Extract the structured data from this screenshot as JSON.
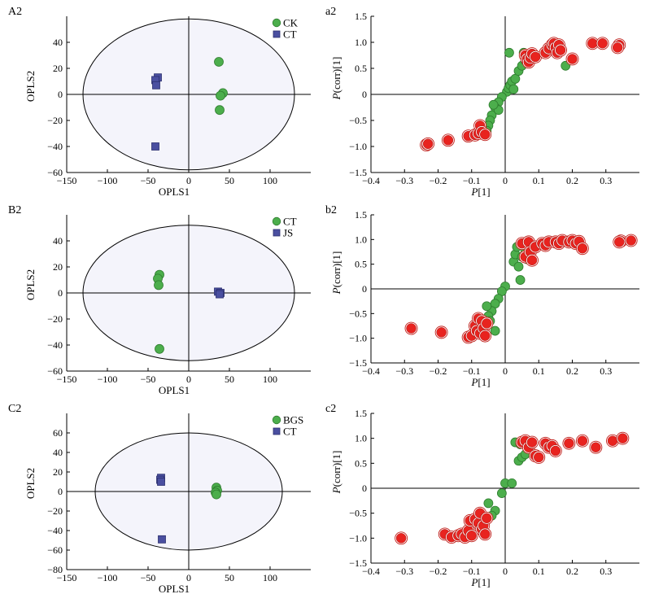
{
  "colors": {
    "green": "#4cae4c",
    "green_edge": "#2f7d2f",
    "red": "#e8231f",
    "red_ring": "#c0201c",
    "blue": "#4a4fa0",
    "blue_edge": "#2b2f6e",
    "ellipse_fill": "#f4f4fb",
    "axis": "#000000"
  },
  "chart_data": [
    {
      "type": "scatter",
      "panel_label": "A2",
      "xlabel": "OPLS1",
      "ylabel": "OPLS2",
      "xlim": [
        -150,
        150
      ],
      "ylim": [
        -60,
        60
      ],
      "xticks": [
        -150,
        -100,
        -50,
        0,
        50,
        100
      ],
      "yticks": [
        -60,
        -40,
        -20,
        0,
        20,
        40
      ],
      "ellipse": {
        "rx": 130,
        "ry": 58
      },
      "legend_placement": "top-right",
      "series": [
        {
          "name": "CK",
          "marker": "circle",
          "color": "green",
          "points": [
            [
              37,
              25
            ],
            [
              42,
              1
            ],
            [
              39,
              -1
            ],
            [
              38,
              -12
            ]
          ]
        },
        {
          "name": "CT",
          "marker": "square",
          "color": "blue",
          "points": [
            [
              -38,
              13
            ],
            [
              -41,
              11
            ],
            [
              -40,
              7
            ],
            [
              -41,
              -40
            ]
          ]
        }
      ]
    },
    {
      "type": "scatter",
      "panel_label": "a2",
      "xlabel": "P[1]",
      "ylabel": "P(corr)[1]",
      "xlim": [
        -0.4,
        0.4
      ],
      "ylim": [
        -1.5,
        1.5
      ],
      "xticks": [
        -0.4,
        -0.3,
        -0.2,
        -0.1,
        0,
        0.1,
        0.2,
        0.3
      ],
      "yticks": [
        -1.5,
        -1.0,
        -0.5,
        0,
        0.5,
        1.0,
        1.5
      ],
      "series": [
        {
          "marker": "circle",
          "color": "green",
          "points": [
            [
              0.005,
              0.05
            ],
            [
              0.01,
              0.12
            ],
            [
              0.015,
              0.18
            ],
            [
              0.02,
              0.25
            ],
            [
              0.025,
              0.1
            ],
            [
              -0.01,
              -0.05
            ],
            [
              -0.02,
              -0.15
            ],
            [
              -0.03,
              -0.25
            ],
            [
              -0.04,
              -0.4
            ],
            [
              -0.045,
              -0.5
            ],
            [
              -0.05,
              -0.6
            ],
            [
              -0.055,
              -0.7
            ],
            [
              -0.02,
              -0.3
            ],
            [
              0.03,
              0.3
            ],
            [
              0.04,
              0.45
            ],
            [
              0.05,
              0.55
            ],
            [
              0.06,
              0.65
            ],
            [
              0.055,
              0.8
            ],
            [
              0.065,
              0.7
            ],
            [
              0.07,
              0.6
            ],
            [
              0.012,
              0.8
            ],
            [
              0.09,
              0.75
            ],
            [
              0.18,
              0.55
            ],
            [
              -0.035,
              -0.2
            ]
          ]
        },
        {
          "marker": "ring",
          "color": "red",
          "points": [
            [
              -0.235,
              -0.97
            ],
            [
              -0.23,
              -0.95
            ],
            [
              -0.17,
              -0.88
            ],
            [
              -0.11,
              -0.8
            ],
            [
              -0.09,
              -0.78
            ],
            [
              -0.08,
              -0.75
            ],
            [
              -0.075,
              -0.6
            ],
            [
              -0.07,
              -0.72
            ],
            [
              -0.06,
              -0.77
            ],
            [
              0.06,
              0.75
            ],
            [
              0.065,
              0.68
            ],
            [
              0.07,
              0.62
            ],
            [
              0.075,
              0.7
            ],
            [
              0.08,
              0.78
            ],
            [
              0.09,
              0.72
            ],
            [
              0.12,
              0.8
            ],
            [
              0.13,
              0.88
            ],
            [
              0.14,
              0.95
            ],
            [
              0.145,
              0.98
            ],
            [
              0.15,
              0.9
            ],
            [
              0.155,
              0.8
            ],
            [
              0.16,
              0.95
            ],
            [
              0.165,
              0.85
            ],
            [
              0.2,
              0.68
            ],
            [
              0.26,
              0.98
            ],
            [
              0.29,
              0.98
            ],
            [
              0.34,
              0.95
            ],
            [
              0.335,
              0.9
            ]
          ]
        }
      ]
    },
    {
      "type": "scatter",
      "panel_label": "B2",
      "xlabel": "OPLS1",
      "ylabel": "OPLS2",
      "xlim": [
        -150,
        150
      ],
      "ylim": [
        -60,
        60
      ],
      "xticks": [
        -150,
        -100,
        -50,
        0,
        50,
        100
      ],
      "yticks": [
        -60,
        -40,
        -20,
        0,
        20,
        40
      ],
      "ellipse": {
        "rx": 130,
        "ry": 52
      },
      "legend_placement": "top-right",
      "series": [
        {
          "name": "CT",
          "marker": "circle",
          "color": "green",
          "points": [
            [
              -36,
              14
            ],
            [
              -38,
              11
            ],
            [
              -37,
              6
            ],
            [
              -36,
              -43
            ]
          ]
        },
        {
          "name": "JS",
          "marker": "square",
          "color": "blue",
          "points": [
            [
              36,
              1
            ],
            [
              39,
              0
            ],
            [
              38,
              -1
            ]
          ]
        }
      ]
    },
    {
      "type": "scatter",
      "panel_label": "b2",
      "xlabel": "P[1]",
      "ylabel": "P(corr)[1]",
      "xlim": [
        -0.4,
        0.4
      ],
      "ylim": [
        -1.5,
        1.5
      ],
      "xticks": [
        -0.4,
        -0.3,
        -0.2,
        -0.1,
        0,
        0.1,
        0.2,
        0.3
      ],
      "yticks": [
        -1.5,
        -1.0,
        -0.5,
        0,
        0.5,
        1.0,
        1.5
      ],
      "series": [
        {
          "marker": "circle",
          "color": "green",
          "points": [
            [
              0.0,
              0.05
            ],
            [
              -0.01,
              -0.05
            ],
            [
              -0.02,
              -0.2
            ],
            [
              -0.03,
              -0.3
            ],
            [
              -0.04,
              -0.45
            ],
            [
              -0.05,
              -0.55
            ],
            [
              -0.055,
              -0.35
            ],
            [
              -0.06,
              -0.7
            ],
            [
              -0.03,
              -0.85
            ],
            [
              0.025,
              0.55
            ],
            [
              0.03,
              0.7
            ],
            [
              0.035,
              0.85
            ],
            [
              0.04,
              0.45
            ],
            [
              0.045,
              0.18
            ],
            [
              0.05,
              0.65
            ],
            [
              0.055,
              0.9
            ],
            [
              0.06,
              0.75
            ],
            [
              0.065,
              0.6
            ],
            [
              -0.045,
              -0.65
            ]
          ]
        },
        {
          "marker": "ring",
          "color": "red",
          "points": [
            [
              -0.28,
              -0.8
            ],
            [
              -0.19,
              -0.88
            ],
            [
              -0.11,
              -0.98
            ],
            [
              -0.1,
              -0.95
            ],
            [
              -0.09,
              -0.75
            ],
            [
              -0.085,
              -0.85
            ],
            [
              -0.08,
              -0.6
            ],
            [
              -0.075,
              -0.9
            ],
            [
              -0.07,
              -0.65
            ],
            [
              -0.065,
              -0.8
            ],
            [
              -0.06,
              -0.95
            ],
            [
              -0.055,
              -0.7
            ],
            [
              0.05,
              0.92
            ],
            [
              0.06,
              0.65
            ],
            [
              0.07,
              0.95
            ],
            [
              0.075,
              0.75
            ],
            [
              0.08,
              0.58
            ],
            [
              0.09,
              0.85
            ],
            [
              0.11,
              0.92
            ],
            [
              0.12,
              0.88
            ],
            [
              0.13,
              0.95
            ],
            [
              0.15,
              0.95
            ],
            [
              0.16,
              0.92
            ],
            [
              0.17,
              0.98
            ],
            [
              0.19,
              0.95
            ],
            [
              0.2,
              0.98
            ],
            [
              0.21,
              0.92
            ],
            [
              0.22,
              0.96
            ],
            [
              0.23,
              0.82
            ],
            [
              0.345,
              0.97
            ],
            [
              0.34,
              0.95
            ],
            [
              0.375,
              0.98
            ]
          ]
        }
      ]
    },
    {
      "type": "scatter",
      "panel_label": "C2",
      "xlabel": "OPLS1",
      "ylabel": "OPLS2",
      "xlim": [
        -150,
        150
      ],
      "ylim": [
        -80,
        80
      ],
      "xticks": [
        -150,
        -100,
        -50,
        0,
        50,
        100
      ],
      "yticks": [
        -80,
        -60,
        -40,
        -20,
        0,
        20,
        40,
        60
      ],
      "ellipse": {
        "rx": 115,
        "ry": 60
      },
      "legend_placement": "top-right",
      "series": [
        {
          "name": "BGS",
          "marker": "circle",
          "color": "green",
          "points": [
            [
              34,
              4
            ],
            [
              35,
              1
            ],
            [
              33,
              -1
            ],
            [
              34,
              -3
            ]
          ]
        },
        {
          "name": "CT",
          "marker": "square",
          "color": "blue",
          "points": [
            [
              -34,
              14
            ],
            [
              -35,
              12
            ],
            [
              -34,
              10
            ],
            [
              -33,
              -49
            ]
          ]
        }
      ]
    },
    {
      "type": "scatter",
      "panel_label": "c2",
      "xlabel": "P[1]",
      "ylabel": "P(corr)[1]",
      "xlim": [
        -0.4,
        0.4
      ],
      "ylim": [
        -1.5,
        1.5
      ],
      "xticks": [
        -0.4,
        -0.3,
        -0.2,
        -0.1,
        0,
        0.1,
        0.2,
        0.3
      ],
      "yticks": [
        -1.5,
        -1.0,
        -0.5,
        0,
        0.5,
        1.0,
        1.5
      ],
      "series": [
        {
          "marker": "circle",
          "color": "green",
          "points": [
            [
              0.0,
              0.1
            ],
            [
              0.02,
              0.1
            ],
            [
              -0.01,
              -0.1
            ],
            [
              -0.03,
              -0.45
            ],
            [
              -0.04,
              -0.55
            ],
            [
              -0.05,
              -0.3
            ],
            [
              0.03,
              0.92
            ],
            [
              0.04,
              0.55
            ],
            [
              0.05,
              0.62
            ],
            [
              0.06,
              0.68
            ],
            [
              0.045,
              0.88
            ]
          ]
        },
        {
          "marker": "ring",
          "color": "red",
          "points": [
            [
              -0.31,
              -1.0
            ],
            [
              -0.18,
              -0.92
            ],
            [
              -0.16,
              -0.98
            ],
            [
              -0.14,
              -0.95
            ],
            [
              -0.13,
              -0.92
            ],
            [
              -0.12,
              -0.98
            ],
            [
              -0.11,
              -0.85
            ],
            [
              -0.105,
              -0.65
            ],
            [
              -0.1,
              -0.95
            ],
            [
              -0.09,
              -0.62
            ],
            [
              -0.08,
              -0.7
            ],
            [
              -0.075,
              -0.5
            ],
            [
              -0.07,
              -0.82
            ],
            [
              -0.065,
              -0.75
            ],
            [
              -0.06,
              -0.92
            ],
            [
              -0.055,
              -0.6
            ],
            [
              0.05,
              0.92
            ],
            [
              0.06,
              0.95
            ],
            [
              0.07,
              0.82
            ],
            [
              0.08,
              0.92
            ],
            [
              0.09,
              0.65
            ],
            [
              0.1,
              0.62
            ],
            [
              0.12,
              0.9
            ],
            [
              0.13,
              0.82
            ],
            [
              0.14,
              0.85
            ],
            [
              0.15,
              0.75
            ],
            [
              0.19,
              0.9
            ],
            [
              0.23,
              0.95
            ],
            [
              0.27,
              0.82
            ],
            [
              0.32,
              0.95
            ],
            [
              0.35,
              1.0
            ]
          ]
        }
      ]
    }
  ]
}
